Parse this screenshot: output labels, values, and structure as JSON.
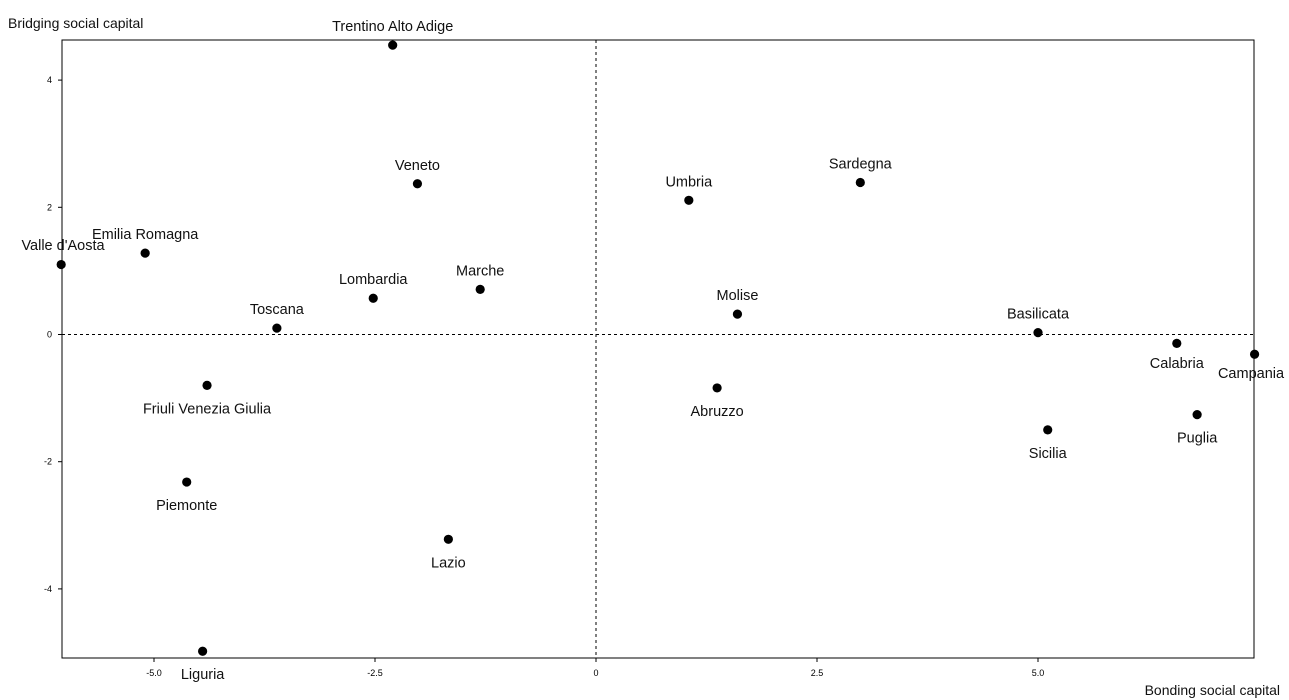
{
  "chart_data": {
    "type": "scatter",
    "xlabel": "Bonding social capital",
    "ylabel": "Bridging social capital",
    "xlim": [
      -6.05,
      7.45
    ],
    "ylim": [
      -5.0,
      4.6
    ],
    "xticks": [
      -5.0,
      -2.5,
      0,
      2.5,
      5.0
    ],
    "xtick_labels": [
      "-5.0",
      "-2.5",
      "0",
      "2.5",
      "5.0"
    ],
    "yticks": [
      4,
      2,
      0,
      -2,
      -4
    ],
    "ytick_labels": [
      "4",
      "2",
      "0",
      "-2",
      "-4"
    ],
    "reference_lines": {
      "x": 0,
      "y": 0,
      "style": "dotted"
    },
    "grid": false,
    "points": [
      {
        "label": "Trentino Alto Adige",
        "x": -2.3,
        "y": 4.55,
        "label_pos": "above"
      },
      {
        "label": "Veneto",
        "x": -2.02,
        "y": 2.37,
        "label_pos": "above"
      },
      {
        "label": "Emilia Romagna",
        "x": -5.1,
        "y": 1.28,
        "label_pos": "above"
      },
      {
        "label": "Valle d'Aosta",
        "x": -6.05,
        "y": 1.1,
        "label_pos": "above"
      },
      {
        "label": "Lombardia",
        "x": -2.52,
        "y": 0.57,
        "label_pos": "above"
      },
      {
        "label": "Marche",
        "x": -1.31,
        "y": 0.71,
        "label_pos": "above"
      },
      {
        "label": "Toscana",
        "x": -3.61,
        "y": 0.1,
        "label_pos": "above"
      },
      {
        "label": "Friuli Venezia Giulia",
        "x": -4.4,
        "y": -0.8,
        "label_pos": "below"
      },
      {
        "label": "Piemonte",
        "x": -4.63,
        "y": -2.32,
        "label_pos": "below"
      },
      {
        "label": "Lazio",
        "x": -1.67,
        "y": -3.22,
        "label_pos": "below"
      },
      {
        "label": "Liguria",
        "x": -4.45,
        "y": -4.98,
        "label_pos": "below"
      },
      {
        "label": "Umbria",
        "x": 1.05,
        "y": 2.11,
        "label_pos": "above"
      },
      {
        "label": "Sardegna",
        "x": 2.99,
        "y": 2.39,
        "label_pos": "above"
      },
      {
        "label": "Molise",
        "x": 1.6,
        "y": 0.32,
        "label_pos": "above"
      },
      {
        "label": "Abruzzo",
        "x": 1.37,
        "y": -0.84,
        "label_pos": "below"
      },
      {
        "label": "Basilicata",
        "x": 5.0,
        "y": 0.03,
        "label_pos": "above"
      },
      {
        "label": "Calabria",
        "x": 6.57,
        "y": -0.14,
        "label_pos": "below"
      },
      {
        "label": "Campania",
        "x": 7.45,
        "y": -0.31,
        "label_pos": "below"
      },
      {
        "label": "Sicilia",
        "x": 5.11,
        "y": -1.5,
        "label_pos": "below"
      },
      {
        "label": "Puglia",
        "x": 6.8,
        "y": -1.26,
        "label_pos": "below"
      }
    ]
  },
  "colors": {
    "point": "#000000",
    "frame": "#000000",
    "text": "#111111"
  }
}
